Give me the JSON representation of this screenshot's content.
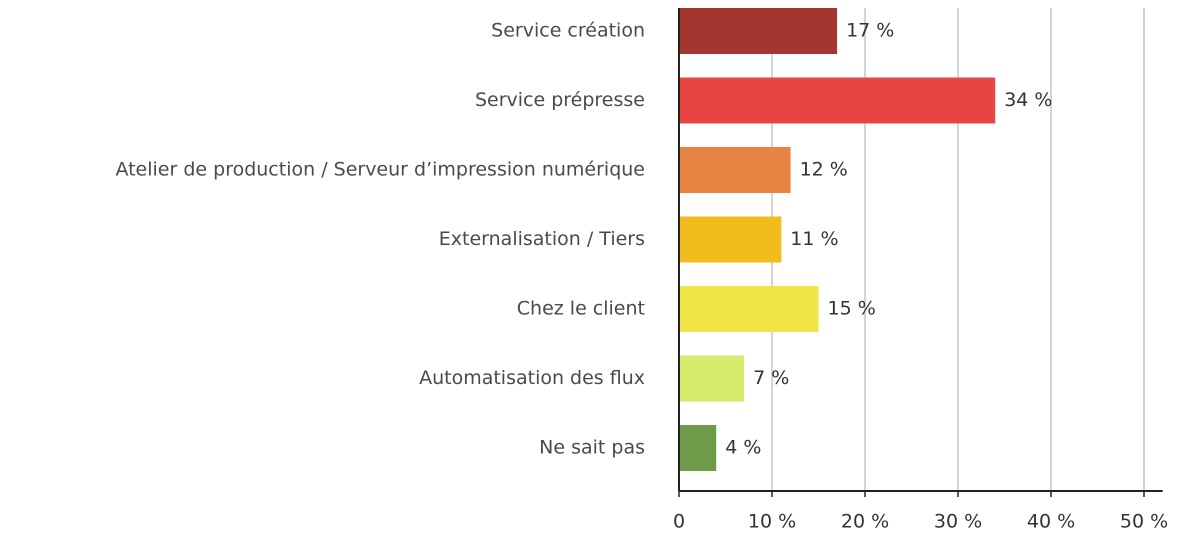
{
  "chart_data": {
    "type": "hbar",
    "categories": [
      "Service création",
      "Service prépresse",
      "Atelier de production / Serveur d’impression numérique",
      "Externalisation / Tiers",
      "Chez le client",
      "Automatisation des flux",
      "Ne sait pas"
    ],
    "values": [
      17,
      34,
      12,
      11,
      15,
      7,
      4
    ],
    "value_labels": [
      "17 %",
      "34 %",
      "12 %",
      "11 %",
      "15 %",
      "7 %",
      "4 %"
    ],
    "colors": [
      "#a5362f",
      "#e84444",
      "#e88443",
      "#f2bb1e",
      "#f0e545",
      "#d7ea6a",
      "#6f9a4a"
    ],
    "xlim": [
      0,
      52
    ],
    "xticks": [
      0,
      {
        "value": 10,
        "label": "10 %"
      },
      {
        "value": 20,
        "label": "20 %"
      },
      {
        "value": 30,
        "label": "30 %"
      },
      {
        "value": 40,
        "label": "40 %"
      },
      {
        "value": 50,
        "label": "50 %"
      }
    ],
    "grid": true
  }
}
